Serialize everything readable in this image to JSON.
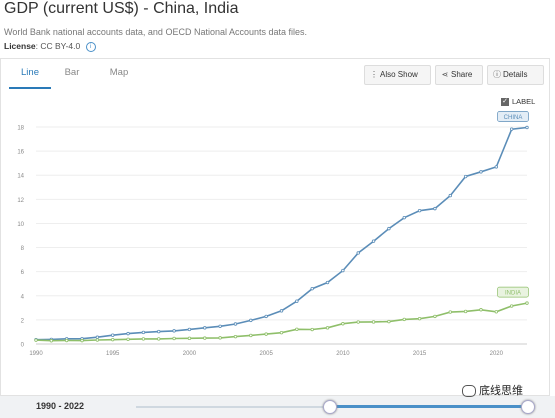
{
  "header": {
    "title": "GDP (current US$) - China, India",
    "subtitle": "World Bank national accounts data, and OECD National Accounts data files.",
    "license_label": "License",
    "license_value": ": CC BY-4.0",
    "info_icon": "info-icon"
  },
  "tabs": [
    {
      "label": "Line",
      "active": true
    },
    {
      "label": "Bar",
      "active": false
    },
    {
      "label": "Map",
      "active": false
    }
  ],
  "toolbar": {
    "also_show_label": "Also Show",
    "also_show_icon": "vertical-dots-icon",
    "share_label": "Share",
    "share_icon": "share-icon",
    "details_label": "Details",
    "details_icon": "info-icon"
  },
  "label_toggle": {
    "label": "LABEL",
    "checked": true
  },
  "chart_data": {
    "type": "line",
    "title": "",
    "xlabel": "",
    "ylabel": "",
    "xlim": [
      1990,
      2022
    ],
    "ylim": [
      0,
      18
    ],
    "x_ticks": [
      "1990",
      "1995",
      "2000",
      "2005",
      "2010",
      "2015",
      "2020"
    ],
    "y_ticks": [
      "0",
      "2",
      "4",
      "6",
      "8",
      "10",
      "12",
      "14",
      "16",
      "18"
    ],
    "grid": true,
    "x": [
      1990,
      1991,
      1992,
      1993,
      1994,
      1995,
      1996,
      1997,
      1998,
      1999,
      2000,
      2001,
      2002,
      2003,
      2004,
      2005,
      2006,
      2007,
      2008,
      2009,
      2010,
      2011,
      2012,
      2013,
      2014,
      2015,
      2016,
      2017,
      2018,
      2019,
      2020,
      2021,
      2022
    ],
    "series": [
      {
        "name": "CHINA",
        "color": "#5b8db8",
        "values": [
          0.36,
          0.38,
          0.43,
          0.44,
          0.56,
          0.73,
          0.86,
          0.96,
          1.03,
          1.09,
          1.21,
          1.34,
          1.47,
          1.66,
          1.96,
          2.29,
          2.75,
          3.55,
          4.59,
          5.1,
          6.09,
          7.55,
          8.53,
          9.57,
          10.48,
          11.06,
          11.23,
          12.31,
          13.89,
          14.28,
          14.69,
          17.82,
          17.96
        ]
      },
      {
        "name": "INDIA",
        "color": "#8fbf6a",
        "values": [
          0.32,
          0.27,
          0.29,
          0.28,
          0.33,
          0.36,
          0.39,
          0.42,
          0.42,
          0.46,
          0.47,
          0.49,
          0.51,
          0.61,
          0.71,
          0.82,
          0.94,
          1.22,
          1.2,
          1.34,
          1.68,
          1.82,
          1.83,
          1.86,
          2.04,
          2.1,
          2.29,
          2.65,
          2.7,
          2.84,
          2.67,
          3.15,
          3.39
        ]
      }
    ]
  },
  "footer": {
    "range_label": "1990 - 2022",
    "range_start_fraction": 0.49,
    "range_end_fraction": 1.0
  },
  "watermark": {
    "text": "底线思维",
    "icon": "wechat-icon"
  }
}
